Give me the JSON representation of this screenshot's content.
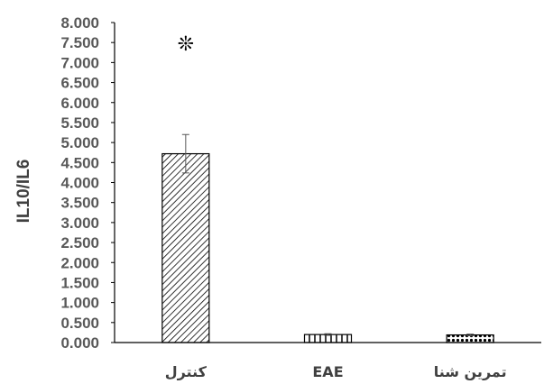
{
  "chart_data": {
    "type": "bar",
    "title": "",
    "xlabel": "",
    "ylabel": "IL10/IL6",
    "ylim": [
      0,
      8
    ],
    "yticks": [
      "0.000",
      "0.500",
      "1.000",
      "1.500",
      "2.000",
      "2.500",
      "3.000",
      "3.500",
      "4.000",
      "4.500",
      "5.000",
      "5.500",
      "6.000",
      "6.500",
      "7.000",
      "7.500",
      "8.000"
    ],
    "categories": [
      "کنترل",
      "EAE",
      "تمرین شنا"
    ],
    "values": [
      4.72,
      0.2,
      0.19
    ],
    "errors": [
      0.48,
      0.02,
      0.02
    ],
    "patterns": [
      "diagonal-hatch",
      "vertical-lines",
      "dotted-grid"
    ],
    "annotation": {
      "category": "کنترل",
      "symbol": "❊"
    },
    "grid": false,
    "legend": "none",
    "colors": {
      "bar_fill": "#ffffff",
      "pattern": "#000000",
      "axis": "#000000",
      "tick_text": "#595959",
      "label_text": "#404040"
    }
  }
}
